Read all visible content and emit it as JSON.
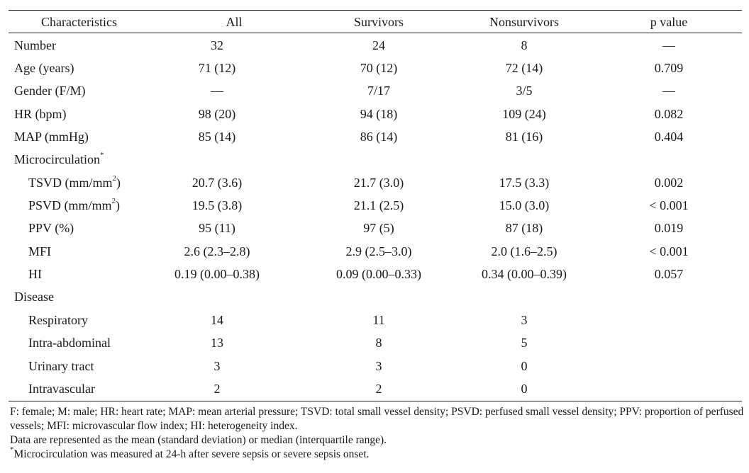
{
  "table": {
    "headers": {
      "characteristics": "Characteristics",
      "all": "All",
      "survivors": "Survivors",
      "nonsurvivors": "Nonsurvivors",
      "p_value": "p value"
    },
    "rows": [
      {
        "label": "Number",
        "all": "32",
        "survivors": "24",
        "nonsurvivors": "8",
        "p": "—"
      },
      {
        "label": "Age (years)",
        "all": "71 (12)",
        "survivors": "70 (12)",
        "nonsurvivors": "72 (14)",
        "p": "0.709"
      },
      {
        "label": "Gender (F/M)",
        "all": "—",
        "survivors": "7/17",
        "nonsurvivors": "3/5",
        "p": "—"
      },
      {
        "label": "HR (bpm)",
        "all": "98 (20)",
        "survivors": "94 (18)",
        "nonsurvivors": "109 (24)",
        "p": "0.082"
      },
      {
        "label": "MAP (mmHg)",
        "all": "85 (14)",
        "survivors": "86 (14)",
        "nonsurvivors": "81 (16)",
        "p": "0.404"
      },
      {
        "label": "Microcirculation",
        "label_sup": "*"
      },
      {
        "label": "TSVD (mm/mm",
        "label_sup": "2",
        "label_suffix": ")",
        "all": "20.7 (3.6)",
        "survivors": "21.7 (3.0)",
        "nonsurvivors": "17.5 (3.3)",
        "p": "0.002"
      },
      {
        "label": "PSVD (mm/mm",
        "label_sup": "2",
        "label_suffix": ")",
        "all": "19.5 (3.8)",
        "survivors": "21.1 (2.5)",
        "nonsurvivors": "15.0 (3.0)",
        "p": "< 0.001"
      },
      {
        "label": "PPV (%)",
        "all": "95 (11)",
        "survivors": "97 (5)",
        "nonsurvivors": "87 (18)",
        "p": "0.019"
      },
      {
        "label": "MFI",
        "all": "2.6 (2.3–2.8)",
        "survivors": "2.9 (2.5–3.0)",
        "nonsurvivors": "2.0 (1.6–2.5)",
        "p": "< 0.001"
      },
      {
        "label": "HI",
        "all": "0.19 (0.00–0.38)",
        "survivors": "0.09 (0.00–0.33)",
        "nonsurvivors": "0.34 (0.00–0.39)",
        "p": "0.057"
      },
      {
        "label": "Disease"
      },
      {
        "label": "Respiratory",
        "all": "14",
        "survivors": "11",
        "nonsurvivors": "3"
      },
      {
        "label": "Intra-abdominal",
        "all": "13",
        "survivors": "8",
        "nonsurvivors": "5"
      },
      {
        "label": "Urinary tract",
        "all": "3",
        "survivors": "3",
        "nonsurvivors": "0"
      },
      {
        "label": "Intravascular",
        "all": "2",
        "survivors": "2",
        "nonsurvivors": "0"
      }
    ]
  },
  "footnotes": {
    "abbreviations": "F: female; M: male; HR: heart rate; MAP: mean arterial pressure; TSVD: total small vessel density; PSVD: perfused small vessel density; PPV: proportion of perfused vessels; MFI: microvascular flow index; HI: heterogeneity index.",
    "representation": "Data are represented as the mean (standard deviation) or median (interquartile range).",
    "microcirculation_mark": "*",
    "microcirculation": "Microcirculation was measured at 24-h after severe sepsis or severe sepsis onset."
  }
}
